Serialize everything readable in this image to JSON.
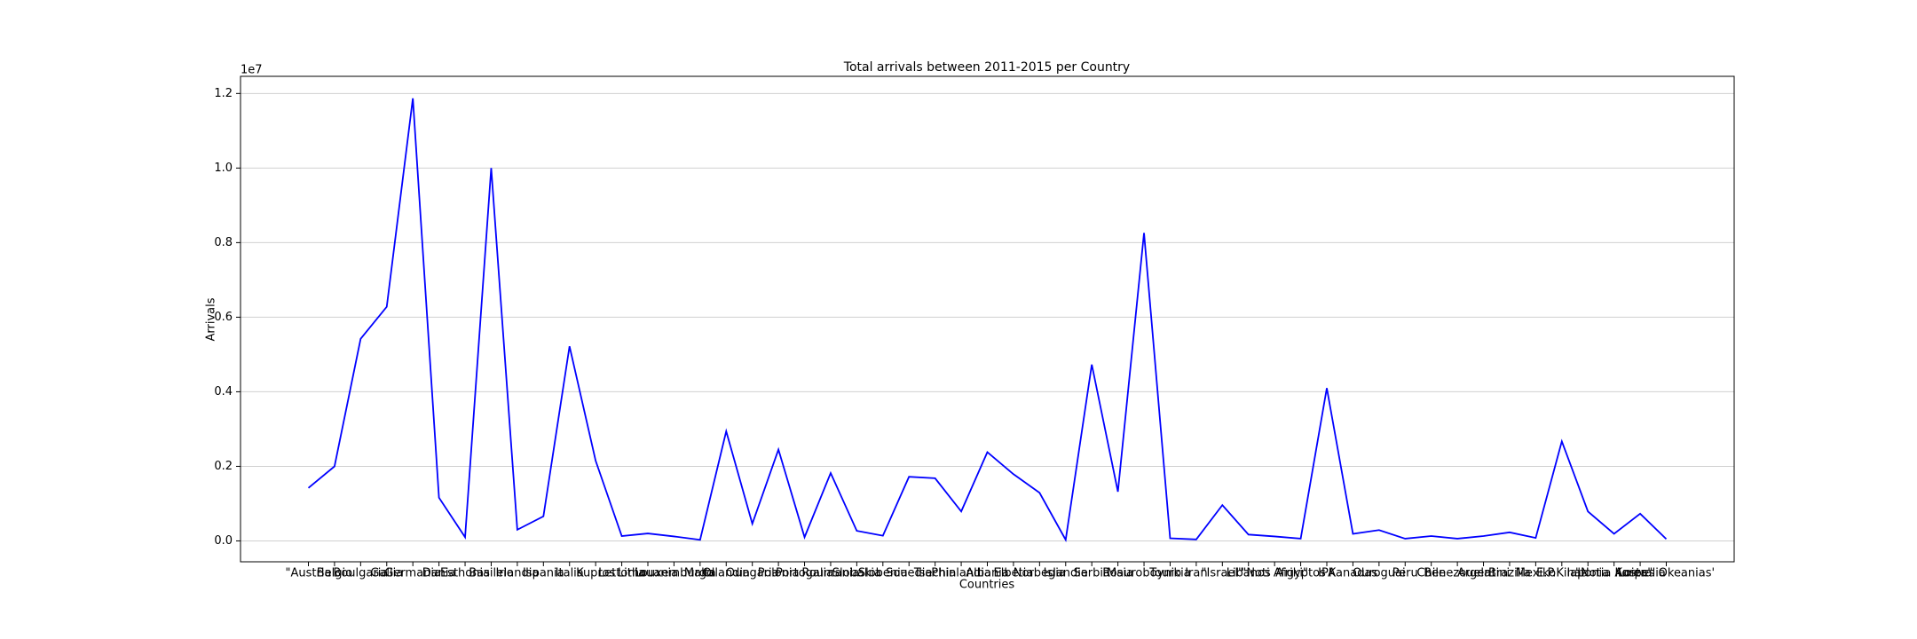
{
  "chart_data": {
    "type": "line",
    "title": "Total arrivals between 2011-2015 per Country",
    "x_label": "Countries",
    "y_label": "Arrivals",
    "y_offset_label": "1e7",
    "categories": [
      "\"Austria",
      "Belgio",
      "Boulgaria",
      "Gallia",
      "Germania",
      "Dania",
      "Esthonia",
      "Basileio",
      "Irlandia",
      "Ispania",
      "Italia",
      "Kupros",
      "Lettonia",
      "Lithouania",
      "Louxemburgo",
      "Malta",
      "Ollandia",
      "Oungaria",
      "Polonia",
      "Portogalia",
      "Roumania",
      "Slobakia",
      "Slobenia",
      "Souedia",
      "Tsechia",
      "Phinlandia",
      "Albania",
      "Elbetia",
      "Norbegia",
      "Islandia",
      "Serbia",
      "Rosia",
      "Mauroboynio",
      "Tourkia",
      "Iran",
      "\"Israel\"",
      "Libanos",
      "\"Noti Afriki\"",
      "Aigyptos",
      "IPA",
      "Kanadas",
      "Ouroguai",
      "Peru",
      "Chile",
      "Benezouela",
      "Argentini",
      "Brazilia",
      "Mexiko",
      "E.P.Kinas",
      "Iaponia",
      "\"Notia Korea\"",
      "Australia",
      "Loipes Okeanias'"
    ],
    "series": [
      {
        "name": "Arrivals",
        "color": "#0000ff",
        "values": [
          1420000,
          2000000,
          5420000,
          6280000,
          11870000,
          1160000,
          100000,
          10000000,
          300000,
          660000,
          5220000,
          2150000,
          130000,
          200000,
          120000,
          30000,
          2940000,
          460000,
          2450000,
          100000,
          1820000,
          270000,
          140000,
          1720000,
          1680000,
          790000,
          2380000,
          1790000,
          1290000,
          30000,
          4730000,
          1320000,
          8260000,
          70000,
          40000,
          960000,
          170000,
          120000,
          60000,
          4100000,
          190000,
          290000,
          60000,
          130000,
          60000,
          130000,
          230000,
          80000,
          2670000,
          790000,
          190000,
          730000,
          50000
        ]
      }
    ],
    "ylim": [
      -560000,
      12460000
    ],
    "yticks": [
      {
        "value": 0,
        "label": "0.0"
      },
      {
        "value": 2000000,
        "label": "0.2"
      },
      {
        "value": 4000000,
        "label": "0.4"
      },
      {
        "value": 6000000,
        "label": "0.6"
      },
      {
        "value": 8000000,
        "label": "0.8"
      },
      {
        "value": 10000000,
        "label": "1.0"
      },
      {
        "value": 12000000,
        "label": "1.2"
      }
    ],
    "grid": true
  }
}
